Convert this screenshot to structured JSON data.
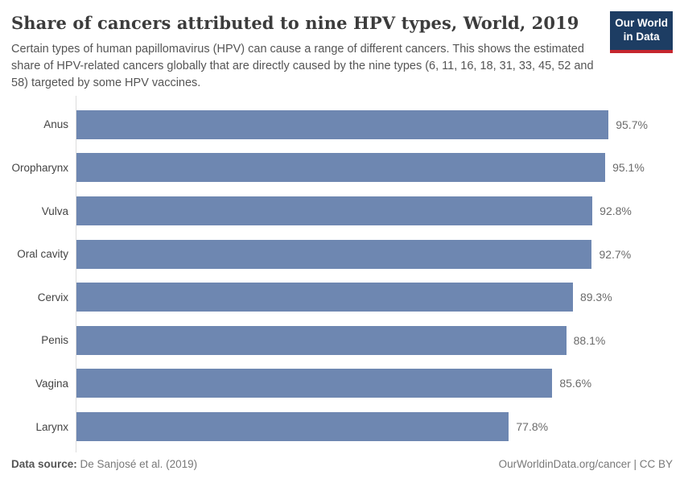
{
  "header": {
    "title": "Share of cancers attributed to nine HPV types, World, 2019",
    "subtitle": "Certain types of human papillomavirus (HPV) can cause a range of different cancers. This shows the estimated share of HPV-related cancers globally that are directly caused by the nine types (6, 11, 16, 18, 31, 33, 45, 52 and 58) targeted by some HPV vaccines.",
    "logo": {
      "line1": "Our World",
      "line2": "in Data",
      "bg_color": "#1d3d63",
      "accent_color": "#c5262e"
    }
  },
  "chart_data": {
    "type": "bar",
    "orientation": "horizontal",
    "title": "Share of cancers attributed to nine HPV types, World, 2019",
    "categories": [
      "Anus",
      "Oropharynx",
      "Vulva",
      "Oral cavity",
      "Cervix",
      "Penis",
      "Vagina",
      "Larynx"
    ],
    "values": [
      95.7,
      95.1,
      92.8,
      92.7,
      89.3,
      88.1,
      85.6,
      77.8
    ],
    "value_labels": [
      "95.7%",
      "95.1%",
      "92.8%",
      "92.7%",
      "89.3%",
      "88.1%",
      "85.6%",
      "77.8%"
    ],
    "xlabel": "",
    "ylabel": "",
    "xlim": [
      0,
      100
    ],
    "bar_color": "#6e87b1",
    "grid": false,
    "legend": false
  },
  "footer": {
    "datasource_label": "Data source:",
    "datasource_value": " De Sanjosé et al. (2019)",
    "link": "OurWorldinData.org/cancer",
    "separator": " | ",
    "license": "CC BY"
  }
}
